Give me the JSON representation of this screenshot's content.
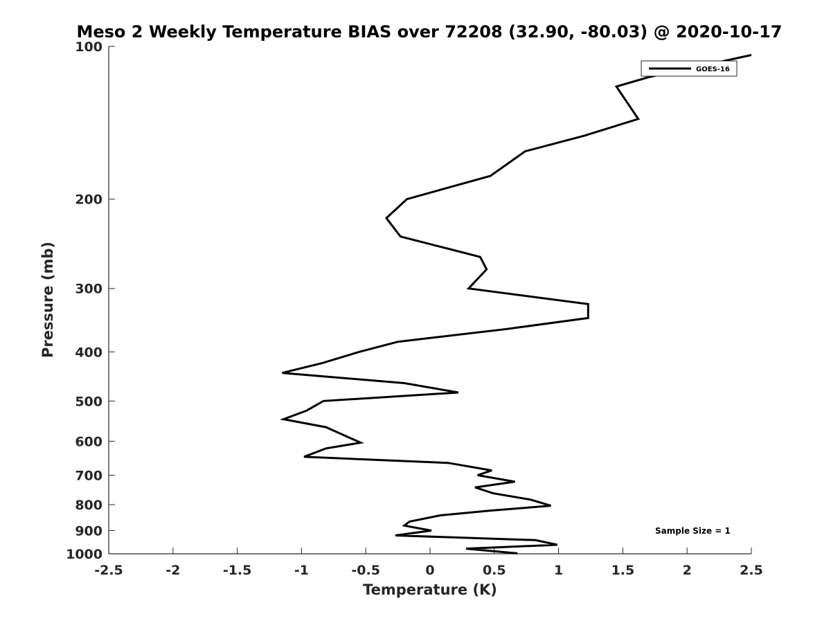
{
  "chart_data": {
    "type": "line",
    "title": "Meso 2 Weekly Temperature BIAS over 72208 (32.90, -80.03) @ 2020-10-17",
    "xlabel": "Temperature (K)",
    "ylabel": "Pressure (mb)",
    "xlim": [
      -2.5,
      2.5
    ],
    "ylim": [
      100,
      1000
    ],
    "yscale": "log",
    "y_reversed": true,
    "grid": false,
    "xticks": [
      -2.5,
      -2,
      -1.5,
      -1,
      -0.5,
      0,
      0.5,
      1,
      1.5,
      2,
      2.5
    ],
    "xtick_labels": [
      "-2.5",
      "-2",
      "-1.5",
      "-1",
      "-0.5",
      "0",
      "0.5",
      "1",
      "1.5",
      "2",
      "2.5"
    ],
    "yticks": [
      100,
      200,
      300,
      400,
      500,
      600,
      700,
      800,
      900,
      1000
    ],
    "ytick_labels": [
      "100",
      "200",
      "300",
      "400",
      "500",
      "600",
      "700",
      "800",
      "900",
      "1000"
    ],
    "legend": {
      "location": "top-right",
      "entries": [
        "GOES-16"
      ]
    },
    "annotation": "Sample Size = 1",
    "series": [
      {
        "name": "GOES-16",
        "color": "#000000",
        "points": [
          {
            "t": 2.5,
            "p": 104
          },
          {
            "t": 1.7,
            "p": 115
          },
          {
            "t": 1.45,
            "p": 120
          },
          {
            "t": 1.62,
            "p": 139
          },
          {
            "t": 1.2,
            "p": 150
          },
          {
            "t": 0.74,
            "p": 161
          },
          {
            "t": 0.47,
            "p": 180
          },
          {
            "t": -0.18,
            "p": 200
          },
          {
            "t": -0.34,
            "p": 218
          },
          {
            "t": -0.23,
            "p": 237
          },
          {
            "t": 0.39,
            "p": 260
          },
          {
            "t": 0.44,
            "p": 275
          },
          {
            "t": 0.3,
            "p": 300
          },
          {
            "t": 1.23,
            "p": 322
          },
          {
            "t": 1.23,
            "p": 343
          },
          {
            "t": 0.58,
            "p": 361
          },
          {
            "t": -0.25,
            "p": 382
          },
          {
            "t": -0.55,
            "p": 400
          },
          {
            "t": -0.84,
            "p": 421
          },
          {
            "t": -1.15,
            "p": 440
          },
          {
            "t": -0.2,
            "p": 461
          },
          {
            "t": 0.22,
            "p": 481
          },
          {
            "t": -0.83,
            "p": 500
          },
          {
            "t": -0.96,
            "p": 522
          },
          {
            "t": -1.14,
            "p": 543
          },
          {
            "t": -0.81,
            "p": 563
          },
          {
            "t": -0.54,
            "p": 604
          },
          {
            "t": -0.81,
            "p": 620
          },
          {
            "t": -0.98,
            "p": 644
          },
          {
            "t": 0.14,
            "p": 662
          },
          {
            "t": 0.48,
            "p": 685
          },
          {
            "t": 0.37,
            "p": 700
          },
          {
            "t": 0.66,
            "p": 721
          },
          {
            "t": 0.35,
            "p": 740
          },
          {
            "t": 0.49,
            "p": 760
          },
          {
            "t": 0.78,
            "p": 782
          },
          {
            "t": 0.94,
            "p": 804
          },
          {
            "t": 0.47,
            "p": 822
          },
          {
            "t": 0.08,
            "p": 840
          },
          {
            "t": -0.16,
            "p": 864
          },
          {
            "t": -0.2,
            "p": 880
          },
          {
            "t": 0.01,
            "p": 900
          },
          {
            "t": -0.27,
            "p": 920
          },
          {
            "t": 0.82,
            "p": 940
          },
          {
            "t": 0.99,
            "p": 960
          },
          {
            "t": 0.28,
            "p": 977
          },
          {
            "t": 0.68,
            "p": 998
          }
        ]
      }
    ]
  }
}
